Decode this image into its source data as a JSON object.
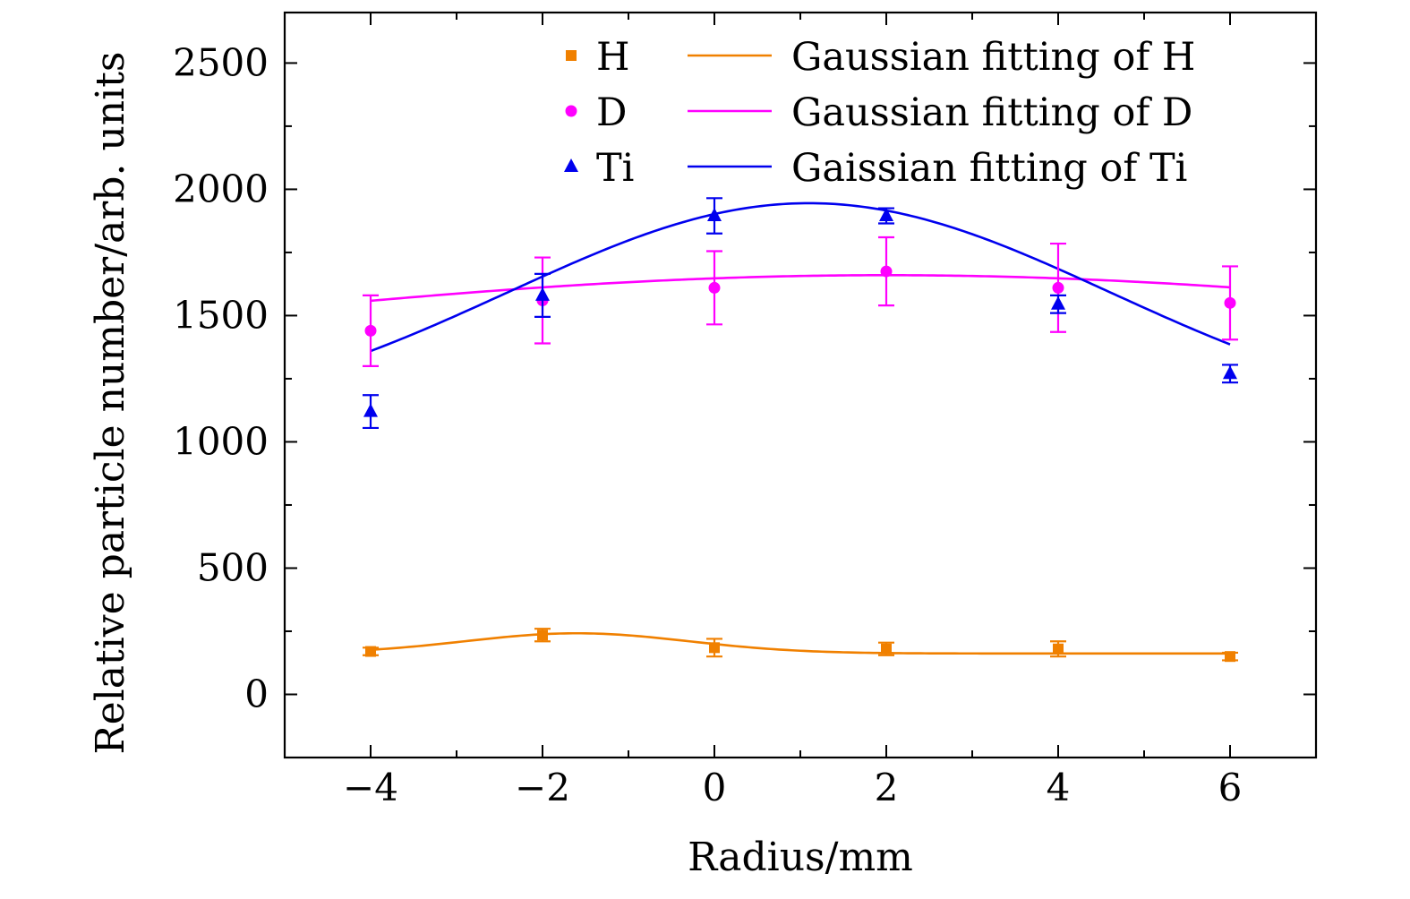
{
  "chart_data": {
    "type": "scatter",
    "title": "",
    "xlabel": "Radius/mm",
    "ylabel": "Relative particle number/arb. units",
    "xlim": [
      -5,
      7
    ],
    "ylim": [
      -250,
      2700
    ],
    "xticks": [
      -4,
      -2,
      0,
      2,
      4,
      6
    ],
    "xtick_labels": [
      "−4",
      "−2",
      "0",
      "2",
      "4",
      "6"
    ],
    "yticks": [
      0,
      500,
      1000,
      1500,
      2000,
      2500
    ],
    "ytick_labels": [
      "0",
      "500",
      "1000",
      "1500",
      "2000",
      "2500"
    ],
    "legend_position": "top-right",
    "series": [
      {
        "name": "H",
        "marker": "square",
        "color": "#f08000",
        "x": [
          -4,
          -2,
          0,
          2,
          4,
          6
        ],
        "y": [
          170,
          235,
          185,
          180,
          180,
          150
        ],
        "err": [
          15,
          25,
          35,
          25,
          30,
          15
        ],
        "fit_name": "Gaussian fitting of H",
        "fit": {
          "base": 162,
          "amp": 80,
          "center": -1.6,
          "width": 1.3
        }
      },
      {
        "name": "D",
        "marker": "circle",
        "color": "#ff00ff",
        "x": [
          -4,
          -2,
          0,
          2,
          4,
          6
        ],
        "y": [
          1440,
          1560,
          1610,
          1675,
          1610,
          1550
        ],
        "err": [
          140,
          170,
          145,
          135,
          175,
          145
        ],
        "fit_name": "Gaussian fitting of D",
        "fit": {
          "base": 1200,
          "amp": 460,
          "center": 2.0,
          "width": 8.5
        }
      },
      {
        "name": "Ti",
        "marker": "triangle",
        "color": "#0000ee",
        "x": [
          -4,
          -2,
          0,
          2,
          4,
          6
        ],
        "y": [
          1120,
          1580,
          1895,
          1895,
          1545,
          1270
        ],
        "err": [
          65,
          85,
          70,
          30,
          35,
          35
        ],
        "fit_name": "Gaissian fitting of Ti",
        "fit": {
          "base": 1050,
          "amp": 895,
          "center": 1.1,
          "width": 3.5
        }
      }
    ]
  }
}
